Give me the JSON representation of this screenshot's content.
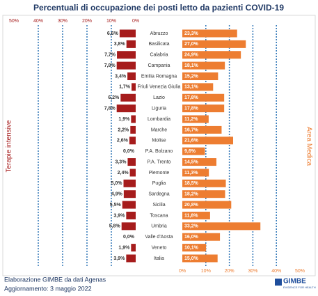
{
  "chart_data": {
    "type": "butterfly",
    "title": "Percentuali di occupazione dei posti letto da pazienti COVID-19",
    "categories": [
      "Abruzzo",
      "Basilicata",
      "Calabria",
      "Campania",
      "Emilia Romagna",
      "Friuli Venezia Giulia",
      "Lazio",
      "Liguria",
      "Lombardia",
      "Marche",
      "Molise",
      "P.A. Bolzano",
      "P.A. Trento",
      "Piemonte",
      "Puglia",
      "Sardegna",
      "Sicilia",
      "Toscana",
      "Umbria",
      "Valle d'Aosta",
      "Veneto",
      "Italia"
    ],
    "series": [
      {
        "name": "Terapie intensive",
        "color": "#a61c1c",
        "values": [
          6.6,
          3.8,
          7.7,
          7.8,
          3.4,
          1.7,
          6.2,
          7.8,
          1.9,
          2.2,
          2.6,
          0.0,
          3.3,
          2.4,
          5.0,
          4.9,
          5.5,
          3.9,
          5.8,
          0.0,
          1.9,
          3.9
        ],
        "value_labels": [
          "6,6%",
          "3,8%",
          "7,7%",
          "7,8%",
          "3,4%",
          "1,7%",
          "6,2%",
          "7,8%",
          "1,9%",
          "2,2%",
          "2,6%",
          "0,0%",
          "3,3%",
          "2,4%",
          "5,0%",
          "4,9%",
          "5,5%",
          "3,9%",
          "5,8%",
          "0,0%",
          "1,9%",
          "3,9%"
        ]
      },
      {
        "name": "Area Medica",
        "color": "#ed7d31",
        "values": [
          23.3,
          27.0,
          24.9,
          18.1,
          15.2,
          13.1,
          17.8,
          17.8,
          11.2,
          16.7,
          21.6,
          9.6,
          14.5,
          11.3,
          18.5,
          18.2,
          20.8,
          11.8,
          33.2,
          16.0,
          10.1,
          15.0
        ],
        "value_labels": [
          "23,3%",
          "27,0%",
          "24,9%",
          "18,1%",
          "15,2%",
          "13,1%",
          "17,8%",
          "17,8%",
          "11,2%",
          "16,7%",
          "21,6%",
          "9,6%",
          "14,5%",
          "11,3%",
          "18,5%",
          "18,2%",
          "20,8%",
          "11,8%",
          "33,2%",
          "16,0%",
          "10,1%",
          "15,0%"
        ]
      }
    ],
    "xlim": [
      0,
      50
    ],
    "xticks": [
      {
        "value": 0,
        "label": "0%"
      },
      {
        "value": 10,
        "label": "10%"
      },
      {
        "value": 20,
        "label": "20%"
      },
      {
        "value": 30,
        "label": "30%"
      },
      {
        "value": 40,
        "label": "40%"
      },
      {
        "value": 50,
        "label": "50%"
      }
    ],
    "grid": true
  },
  "footer": {
    "source": "Elaborazione GIMBE da dati Agenas",
    "update": "Aggiornamento: 3 maggio 2022",
    "logo": "GIMBE",
    "tagline": "EVIDENCE FOR HEALTH"
  }
}
